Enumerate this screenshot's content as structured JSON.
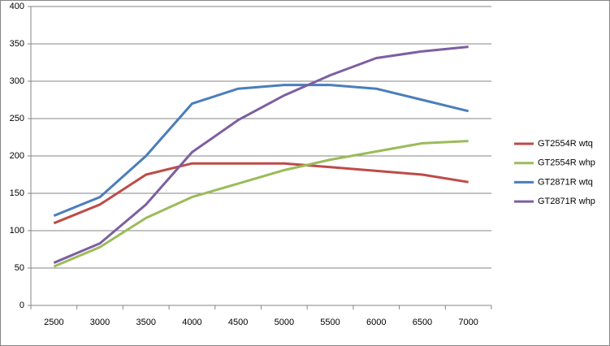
{
  "chart_data": {
    "type": "line",
    "categories": [
      "2500",
      "3000",
      "3500",
      "4000",
      "4500",
      "5000",
      "5500",
      "6000",
      "6500",
      "7000"
    ],
    "series": [
      {
        "name": "GT2554R wtq",
        "color": "#be4b48",
        "values": [
          110,
          135,
          175,
          190,
          190,
          190,
          185,
          180,
          175,
          165
        ]
      },
      {
        "name": "GT2554R whp",
        "color": "#9bbb59",
        "values": [
          52,
          78,
          117,
          145,
          163,
          181,
          195,
          206,
          217,
          220
        ]
      },
      {
        "name": "GT2871R wtq",
        "color": "#4a7ebb",
        "values": [
          120,
          145,
          200,
          270,
          290,
          295,
          295,
          290,
          275,
          260
        ]
      },
      {
        "name": "GT2871R whp",
        "color": "#7d5fa0",
        "values": [
          57,
          83,
          135,
          205,
          248,
          281,
          308,
          331,
          340,
          346
        ]
      }
    ],
    "ylim": [
      0,
      400
    ],
    "yticks": [
      0,
      50,
      100,
      150,
      200,
      250,
      300,
      350,
      400
    ],
    "grid": true,
    "legend": "right"
  }
}
